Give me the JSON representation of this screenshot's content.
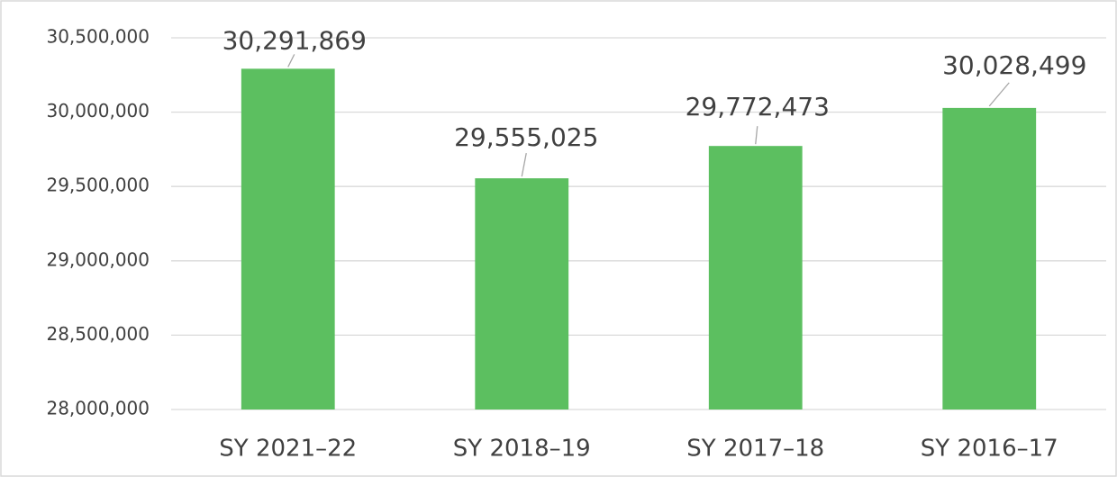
{
  "chart_data": {
    "type": "bar",
    "categories": [
      "SY 2021–22",
      "SY 2018–19",
      "SY 2017–18",
      "SY 2016–17"
    ],
    "values": [
      30291869,
      29555025,
      29772473,
      30028499
    ],
    "value_labels": [
      "30,291,869",
      "29,555,025",
      "29,772,473",
      "30,028,499"
    ],
    "color": "#5cbf60",
    "ylim": [
      28000000,
      30500000
    ],
    "yticks": [
      {
        "value": 28000000,
        "label": "28,000,000"
      },
      {
        "value": 28500000,
        "label": "28,500,000"
      },
      {
        "value": 29000000,
        "label": "29,000,000"
      },
      {
        "value": 29500000,
        "label": "29,500,000"
      },
      {
        "value": 30000000,
        "label": "30,000,000"
      },
      {
        "value": 30500000,
        "label": "30,500,000"
      }
    ],
    "grid": true
  }
}
